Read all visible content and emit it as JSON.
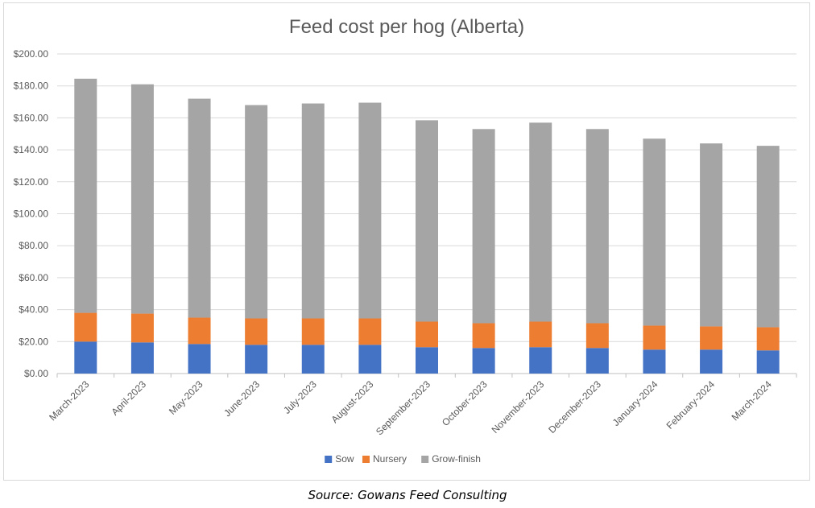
{
  "chart_data": {
    "type": "bar",
    "stacked": true,
    "title": "Feed cost per hog (Alberta)",
    "xlabel": "",
    "ylabel": "",
    "ylim": [
      0,
      200
    ],
    "y_ticks": [
      "$0.00",
      "$20.00",
      "$40.00",
      "$60.00",
      "$80.00",
      "$100.00",
      "$120.00",
      "$140.00",
      "$160.00",
      "$180.00",
      "$200.00"
    ],
    "grid": true,
    "legend_position": "bottom",
    "categories": [
      "March-2023",
      "April-2023",
      "May-2023",
      "June-2023",
      "July-2023",
      "August-2023",
      "September-2023",
      "October-2023",
      "November-2023",
      "December-2023",
      "January-2024",
      "February-2024",
      "March-2024"
    ],
    "series": [
      {
        "name": "Sow",
        "color": "#4472c4",
        "values": [
          20.0,
          19.5,
          18.5,
          18.0,
          18.0,
          18.0,
          16.5,
          16.0,
          16.5,
          16.0,
          15.0,
          15.0,
          14.5
        ]
      },
      {
        "name": "Nursery",
        "color": "#ed7d31",
        "values": [
          18.0,
          18.0,
          16.5,
          16.5,
          16.5,
          16.5,
          16.0,
          15.5,
          16.0,
          15.5,
          15.0,
          14.5,
          14.5
        ]
      },
      {
        "name": "Grow-finish",
        "color": "#a5a5a5",
        "values": [
          146.5,
          143.5,
          137.0,
          133.5,
          134.5,
          135.0,
          126.0,
          121.5,
          124.5,
          121.5,
          117.0,
          114.5,
          113.5
        ]
      }
    ]
  },
  "source_note": "Source: Gowans Feed Consulting"
}
